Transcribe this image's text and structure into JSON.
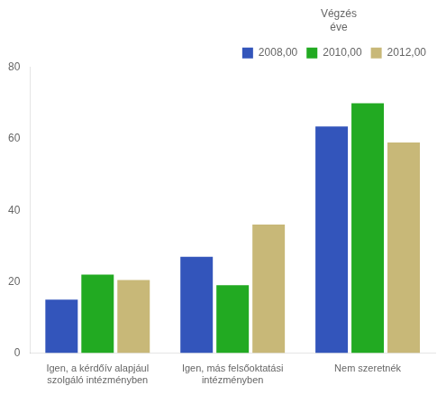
{
  "chart_data": {
    "type": "bar",
    "categories": [
      "Igen, a kérdőív alapjául\nszolgáló intézményben",
      "Igen, más felsőoktatási\nintézményben",
      "Nem szeretnék"
    ],
    "series": [
      {
        "name": "2008,00",
        "color": "#3355bb",
        "values": [
          15.0,
          27.0,
          63.5
        ]
      },
      {
        "name": "2010,00",
        "color": "#22aa22",
        "values": [
          22.0,
          19.0,
          70.0
        ]
      },
      {
        "name": "2012,00",
        "color": "#c8b878",
        "values": [
          20.5,
          36.0,
          59.0
        ]
      }
    ],
    "legend_title": "Végzés\néve",
    "legend": "upper right",
    "grid": false,
    "ylim": [
      0,
      80
    ],
    "yticks": [
      0,
      20,
      40,
      60,
      80
    ]
  }
}
